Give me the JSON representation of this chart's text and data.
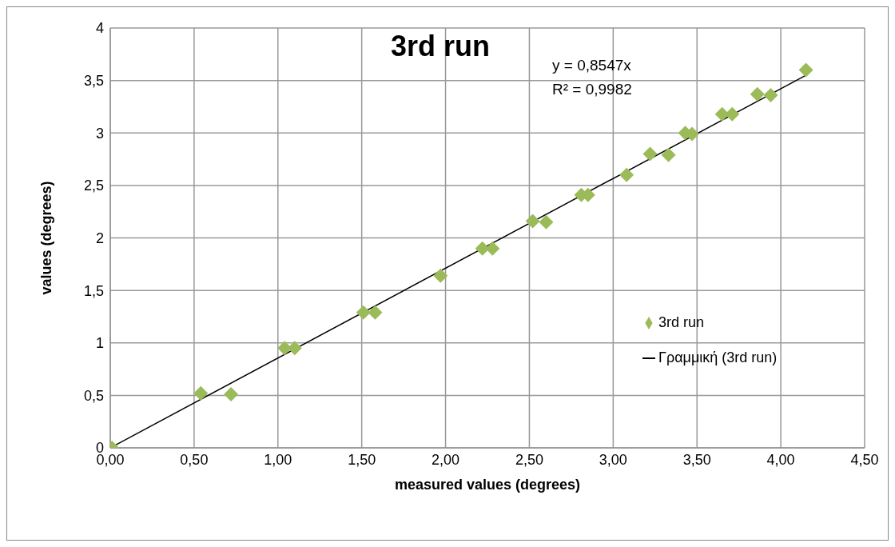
{
  "chart_data": {
    "type": "scatter",
    "title": "3rd run",
    "xlabel": "measured values (degrees)",
    "ylabel": "values (degrees)",
    "annotations": [
      "y = 0,8547x",
      "R² = 0,9982"
    ],
    "series": [
      {
        "name": "3rd run",
        "marker": "diamond",
        "color": "#9bbb59",
        "x": [
          0.01,
          0.54,
          0.72,
          1.04,
          1.1,
          1.51,
          1.58,
          1.97,
          2.22,
          2.28,
          2.52,
          2.6,
          2.81,
          2.85,
          3.07,
          3.08,
          3.22,
          3.33,
          3.43,
          3.47,
          3.65,
          3.71,
          3.86,
          3.94,
          4.15
        ],
        "values": [
          0,
          0.52,
          0.51,
          0.95,
          0.95,
          1.29,
          1.29,
          1.64,
          1.9,
          1.9,
          2.16,
          2.15,
          2.41,
          2.41,
          null,
          2.6,
          2.8,
          2.79,
          3,
          2.99,
          3.18,
          3.18,
          3.37,
          3.36,
          3.6
        ]
      },
      {
        "name": "Γραμμική (3rd run)",
        "type": "line",
        "color": "#000000",
        "x": [
          0,
          4.15
        ],
        "values": [
          0,
          3.55
        ]
      }
    ],
    "xlim": [
      0,
      4.5
    ],
    "xticks": [
      {
        "value": 0,
        "label": "0,00"
      },
      {
        "value": 0.5,
        "label": "0,50"
      },
      {
        "value": 1,
        "label": "1,00"
      },
      {
        "value": 1.5,
        "label": "1,50"
      },
      {
        "value": 2,
        "label": "2,00"
      },
      {
        "value": 2.5,
        "label": "2,50"
      },
      {
        "value": 3,
        "label": "3,00"
      },
      {
        "value": 3.5,
        "label": "3,50"
      },
      {
        "value": 4,
        "label": "4,00"
      },
      {
        "value": 4.5,
        "label": "4,50"
      }
    ],
    "ylim": [
      0,
      4
    ],
    "yticks": [
      0,
      {
        "value": 0.5,
        "label": "0,5"
      },
      1,
      {
        "value": 1.5,
        "label": "1,5"
      },
      2,
      {
        "value": 2.5,
        "label": "2,5"
      },
      3,
      {
        "value": 3.5,
        "label": "3,5"
      },
      4
    ],
    "grid": true,
    "legend": "right"
  }
}
